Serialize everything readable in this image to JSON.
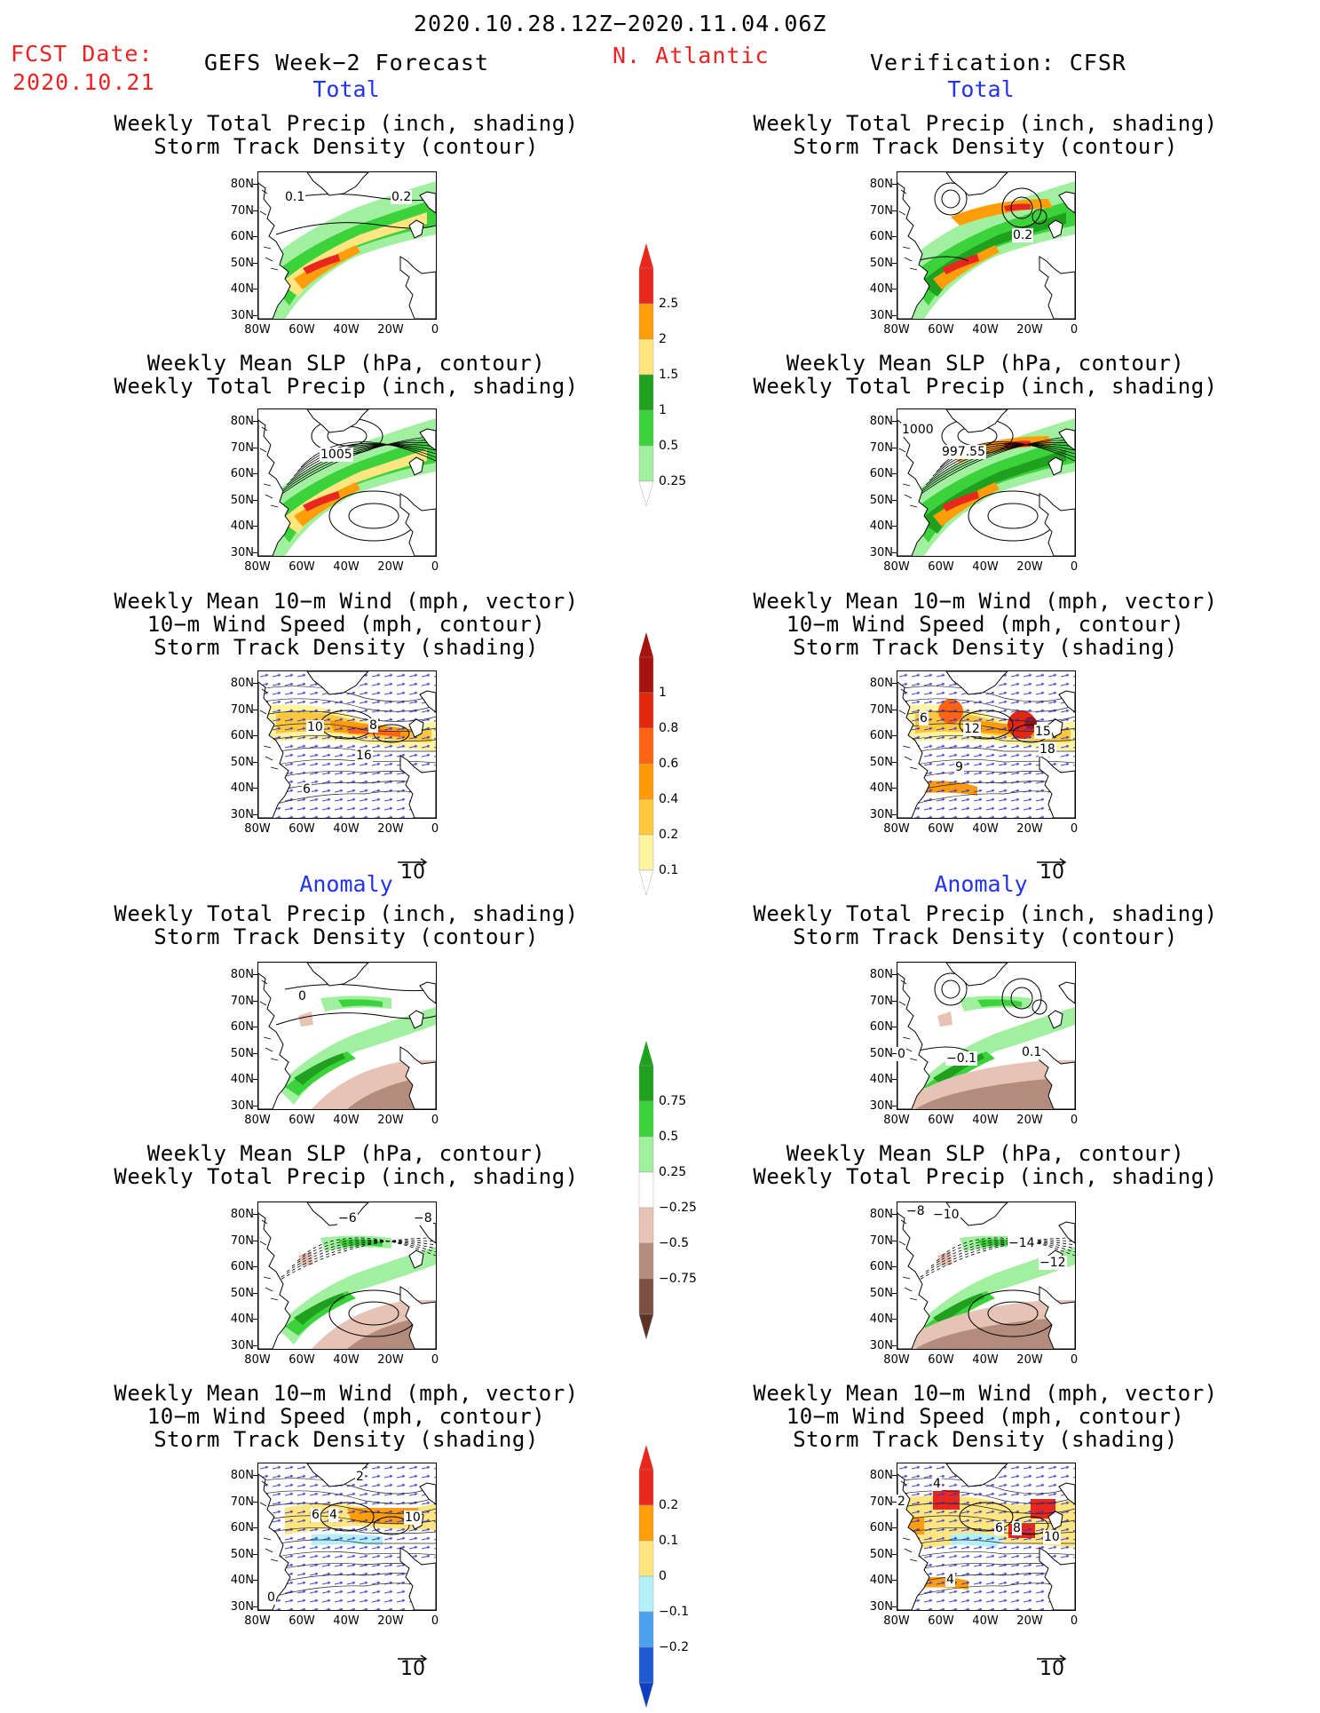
{
  "header": {
    "period": "2020.10.28.12Z−2020.11.04.06Z",
    "fcst_label": "FCST Date:",
    "fcst_date": "2020.10.21",
    "left_title": "GEFS Week−2 Forecast",
    "region": "N. Atlantic",
    "right_title": "Verification: CFSR"
  },
  "sections": {
    "total": "Total",
    "anomaly": "Anomaly"
  },
  "titles": {
    "precip_track": [
      "Weekly Total Precip (inch, shading)",
      "Storm Track Density (contour)"
    ],
    "slp_precip": [
      "Weekly Mean SLP (hPa, contour)",
      "Weekly Total Precip (inch, shading)"
    ],
    "wind": [
      "Weekly Mean 10−m Wind (mph, vector)",
      "10−m Wind Speed (mph, contour)",
      "Storm Track Density (shading)"
    ]
  },
  "axes": {
    "lat_labels": [
      "80N",
      "70N",
      "60N",
      "50N",
      "40N",
      "30N"
    ],
    "lon_labels": [
      "80W",
      "60W",
      "40W",
      "20W",
      "0"
    ]
  },
  "vector_ref": "10",
  "colorbars": {
    "total_precip": {
      "labels": [
        "2.5",
        "2",
        "1.5",
        "1",
        "0.5",
        "0.25"
      ],
      "colors": [
        "#e8281e",
        "#ff9e0a",
        "#ffe680",
        "#1fa01f",
        "#3cd23c",
        "#a0f0a0"
      ]
    },
    "total_track": {
      "labels": [
        "1",
        "0.8",
        "0.6",
        "0.4",
        "0.2",
        "0.1"
      ],
      "colors": [
        "#a5140f",
        "#e1280f",
        "#ff6414",
        "#ff9b0a",
        "#ffc83c",
        "#fff5a0"
      ]
    },
    "anom_precip": {
      "labels": [
        "0.75",
        "0.5",
        "0.25",
        "−0.25",
        "−0.5",
        "−0.75"
      ],
      "colors": [
        "#1fa01f",
        "#3cd23c",
        "#a0f0a0",
        "#ffffff",
        "#e6c3b4",
        "#b48c7d",
        "#7d5041"
      ]
    },
    "anom_track": {
      "labels": [
        "0.2",
        "0.1",
        "0",
        "−0.1",
        "−0.2"
      ],
      "colors": [
        "#e8281e",
        "#ff9e0a",
        "#ffe680",
        "#b4f0fa",
        "#4ba0f0",
        "#1e5ad2"
      ]
    }
  },
  "contour_labels": {
    "p1_left": [
      "0.1",
      "0.2"
    ],
    "p1_right": [
      "0.2"
    ],
    "p2_left": [
      "1005"
    ],
    "p2_right": [
      "1000",
      "997.55"
    ],
    "p3_left": [
      "10",
      "8",
      "16",
      "6"
    ],
    "p3_right": [
      "6",
      "12",
      "15",
      "18",
      "9"
    ],
    "p4_left": [
      "0"
    ],
    "p4_right": [
      "0",
      "−0.1",
      "0.1"
    ],
    "p5_left": [
      "−6",
      "−8"
    ],
    "p5_right": [
      "−8",
      "−10",
      "−14",
      "−12"
    ],
    "p6_left": [
      "2",
      "6",
      "4",
      "10",
      "0"
    ],
    "p6_right": [
      "4",
      "2",
      "6",
      "8",
      "10",
      "4"
    ]
  }
}
